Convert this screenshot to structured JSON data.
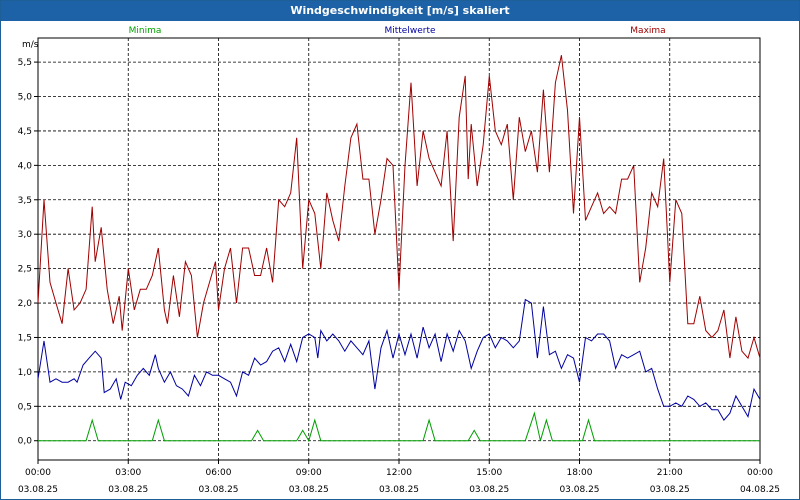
{
  "window": {
    "title": "Windgeschwindigkeit [m/s] skaliert"
  },
  "chart_data": {
    "type": "line",
    "title": "Windgeschwindigkeit [m/s] skaliert",
    "ylabel": "m/s",
    "ylim": [
      -0.28,
      5.85
    ],
    "yticks": [
      "0,0",
      "0,5",
      "1,0",
      "1,5",
      "2,0",
      "2,5",
      "3,0",
      "3,5",
      "4,0",
      "4,5",
      "5,0",
      "5,5"
    ],
    "xticks": [
      {
        "time": "00:00",
        "date": "03.08.25"
      },
      {
        "time": "03:00",
        "date": "03.08.25"
      },
      {
        "time": "06:00",
        "date": "03.08.25"
      },
      {
        "time": "09:00",
        "date": "03.08.25"
      },
      {
        "time": "12:00",
        "date": "03.08.25"
      },
      {
        "time": "15:00",
        "date": "03.08.25"
      },
      {
        "time": "18:00",
        "date": "03.08.25"
      },
      {
        "time": "21:00",
        "date": "03.08.25"
      },
      {
        "time": "00:00",
        "date": "04.08.25"
      }
    ],
    "grid": true,
    "series": [
      {
        "name": "Minima",
        "color": "#00a000",
        "points": [
          [
            0,
            0
          ],
          [
            1.6,
            0
          ],
          [
            1.8,
            0.3
          ],
          [
            2.0,
            0
          ],
          [
            3.8,
            0
          ],
          [
            4.0,
            0.3
          ],
          [
            4.2,
            0
          ],
          [
            7.1,
            0
          ],
          [
            7.3,
            0.15
          ],
          [
            7.5,
            0
          ],
          [
            8.6,
            0
          ],
          [
            8.8,
            0.15
          ],
          [
            9.0,
            0
          ],
          [
            9.2,
            0.3
          ],
          [
            9.4,
            0
          ],
          [
            12.8,
            0
          ],
          [
            13.0,
            0.3
          ],
          [
            13.2,
            0
          ],
          [
            14.3,
            0
          ],
          [
            14.5,
            0.15
          ],
          [
            14.7,
            0
          ],
          [
            16.2,
            0
          ],
          [
            16.5,
            0.4
          ],
          [
            16.7,
            0
          ],
          [
            16.9,
            0.3
          ],
          [
            17.1,
            0
          ],
          [
            18.1,
            0
          ],
          [
            18.3,
            0.3
          ],
          [
            18.5,
            0
          ],
          [
            24,
            0
          ]
        ]
      },
      {
        "name": "Mittelwerte",
        "color": "#0000a0",
        "points": [
          [
            0,
            0.9
          ],
          [
            0.2,
            1.45
          ],
          [
            0.4,
            0.85
          ],
          [
            0.6,
            0.9
          ],
          [
            0.8,
            0.85
          ],
          [
            1.0,
            0.85
          ],
          [
            1.2,
            0.9
          ],
          [
            1.3,
            0.85
          ],
          [
            1.5,
            1.1
          ],
          [
            1.7,
            1.2
          ],
          [
            1.9,
            1.3
          ],
          [
            2.1,
            1.2
          ],
          [
            2.2,
            0.7
          ],
          [
            2.4,
            0.75
          ],
          [
            2.6,
            0.9
          ],
          [
            2.75,
            0.6
          ],
          [
            2.9,
            0.85
          ],
          [
            3.1,
            0.8
          ],
          [
            3.3,
            0.95
          ],
          [
            3.5,
            1.05
          ],
          [
            3.7,
            0.95
          ],
          [
            3.9,
            1.25
          ],
          [
            4.0,
            1.05
          ],
          [
            4.2,
            0.85
          ],
          [
            4.4,
            1.0
          ],
          [
            4.6,
            0.8
          ],
          [
            4.8,
            0.75
          ],
          [
            5.0,
            0.65
          ],
          [
            5.2,
            0.95
          ],
          [
            5.4,
            0.8
          ],
          [
            5.6,
            1.0
          ],
          [
            5.8,
            0.95
          ],
          [
            6.0,
            0.95
          ],
          [
            6.2,
            0.9
          ],
          [
            6.4,
            0.85
          ],
          [
            6.6,
            0.65
          ],
          [
            6.8,
            1.0
          ],
          [
            7.0,
            0.95
          ],
          [
            7.2,
            1.2
          ],
          [
            7.4,
            1.1
          ],
          [
            7.6,
            1.15
          ],
          [
            7.8,
            1.3
          ],
          [
            8.0,
            1.35
          ],
          [
            8.2,
            1.15
          ],
          [
            8.4,
            1.4
          ],
          [
            8.6,
            1.15
          ],
          [
            8.8,
            1.5
          ],
          [
            9.0,
            1.55
          ],
          [
            9.2,
            1.5
          ],
          [
            9.3,
            1.2
          ],
          [
            9.4,
            1.6
          ],
          [
            9.6,
            1.45
          ],
          [
            9.8,
            1.55
          ],
          [
            10.0,
            1.45
          ],
          [
            10.2,
            1.3
          ],
          [
            10.4,
            1.45
          ],
          [
            10.6,
            1.35
          ],
          [
            10.8,
            1.25
          ],
          [
            11.0,
            1.45
          ],
          [
            11.2,
            0.75
          ],
          [
            11.4,
            1.35
          ],
          [
            11.6,
            1.6
          ],
          [
            11.8,
            1.2
          ],
          [
            12.0,
            1.55
          ],
          [
            12.2,
            1.25
          ],
          [
            12.4,
            1.55
          ],
          [
            12.6,
            1.2
          ],
          [
            12.8,
            1.65
          ],
          [
            13.0,
            1.35
          ],
          [
            13.2,
            1.55
          ],
          [
            13.4,
            1.15
          ],
          [
            13.6,
            1.55
          ],
          [
            13.8,
            1.3
          ],
          [
            14.0,
            1.6
          ],
          [
            14.2,
            1.45
          ],
          [
            14.4,
            1.05
          ],
          [
            14.6,
            1.3
          ],
          [
            14.8,
            1.5
          ],
          [
            15.0,
            1.55
          ],
          [
            15.2,
            1.35
          ],
          [
            15.4,
            1.5
          ],
          [
            15.6,
            1.45
          ],
          [
            15.8,
            1.35
          ],
          [
            16.0,
            1.45
          ],
          [
            16.2,
            2.05
          ],
          [
            16.4,
            2.0
          ],
          [
            16.6,
            1.2
          ],
          [
            16.8,
            1.95
          ],
          [
            17.0,
            1.25
          ],
          [
            17.2,
            1.3
          ],
          [
            17.4,
            1.05
          ],
          [
            17.6,
            1.25
          ],
          [
            17.8,
            1.2
          ],
          [
            18.0,
            0.85
          ],
          [
            18.2,
            1.5
          ],
          [
            18.4,
            1.45
          ],
          [
            18.6,
            1.55
          ],
          [
            18.8,
            1.55
          ],
          [
            19.0,
            1.45
          ],
          [
            19.2,
            1.05
          ],
          [
            19.4,
            1.25
          ],
          [
            19.6,
            1.2
          ],
          [
            19.8,
            1.25
          ],
          [
            20.0,
            1.3
          ],
          [
            20.2,
            1.0
          ],
          [
            20.4,
            1.05
          ],
          [
            20.6,
            0.75
          ],
          [
            20.8,
            0.5
          ],
          [
            21.0,
            0.5
          ],
          [
            21.2,
            0.55
          ],
          [
            21.4,
            0.5
          ],
          [
            21.6,
            0.65
          ],
          [
            21.8,
            0.6
          ],
          [
            22.0,
            0.5
          ],
          [
            22.2,
            0.55
          ],
          [
            22.4,
            0.45
          ],
          [
            22.6,
            0.45
          ],
          [
            22.8,
            0.3
          ],
          [
            23.0,
            0.4
          ],
          [
            23.2,
            0.65
          ],
          [
            23.4,
            0.5
          ],
          [
            23.6,
            0.35
          ],
          [
            23.8,
            0.75
          ],
          [
            24.0,
            0.6
          ]
        ]
      },
      {
        "name": "Maxima",
        "color": "#a00000",
        "points": [
          [
            0,
            2.0
          ],
          [
            0.2,
            3.5
          ],
          [
            0.4,
            2.3
          ],
          [
            0.6,
            2.0
          ],
          [
            0.8,
            1.7
          ],
          [
            1.0,
            2.5
          ],
          [
            1.2,
            1.9
          ],
          [
            1.4,
            2.0
          ],
          [
            1.6,
            2.2
          ],
          [
            1.8,
            3.4
          ],
          [
            1.9,
            2.6
          ],
          [
            2.1,
            3.1
          ],
          [
            2.3,
            2.2
          ],
          [
            2.5,
            1.7
          ],
          [
            2.7,
            2.1
          ],
          [
            2.8,
            1.6
          ],
          [
            3.0,
            2.5
          ],
          [
            3.2,
            1.9
          ],
          [
            3.4,
            2.2
          ],
          [
            3.6,
            2.2
          ],
          [
            3.8,
            2.4
          ],
          [
            4.0,
            2.8
          ],
          [
            4.2,
            1.9
          ],
          [
            4.3,
            1.7
          ],
          [
            4.5,
            2.4
          ],
          [
            4.7,
            1.8
          ],
          [
            4.9,
            2.6
          ],
          [
            5.1,
            2.4
          ],
          [
            5.3,
            1.5
          ],
          [
            5.5,
            2.0
          ],
          [
            5.7,
            2.3
          ],
          [
            5.9,
            2.6
          ],
          [
            6.0,
            1.9
          ],
          [
            6.2,
            2.5
          ],
          [
            6.4,
            2.8
          ],
          [
            6.6,
            2.0
          ],
          [
            6.8,
            2.8
          ],
          [
            7.0,
            2.8
          ],
          [
            7.2,
            2.4
          ],
          [
            7.4,
            2.4
          ],
          [
            7.6,
            2.8
          ],
          [
            7.8,
            2.3
          ],
          [
            8.0,
            3.5
          ],
          [
            8.2,
            3.4
          ],
          [
            8.4,
            3.6
          ],
          [
            8.6,
            4.4
          ],
          [
            8.8,
            2.5
          ],
          [
            9.0,
            3.5
          ],
          [
            9.2,
            3.3
          ],
          [
            9.4,
            2.5
          ],
          [
            9.6,
            3.6
          ],
          [
            9.8,
            3.2
          ],
          [
            10.0,
            2.9
          ],
          [
            10.2,
            3.7
          ],
          [
            10.4,
            4.4
          ],
          [
            10.6,
            4.6
          ],
          [
            10.8,
            3.8
          ],
          [
            11.0,
            3.8
          ],
          [
            11.2,
            3.0
          ],
          [
            11.4,
            3.5
          ],
          [
            11.6,
            4.1
          ],
          [
            11.8,
            4.0
          ],
          [
            12.0,
            2.2
          ],
          [
            12.2,
            4.0
          ],
          [
            12.4,
            5.2
          ],
          [
            12.6,
            3.7
          ],
          [
            12.8,
            4.5
          ],
          [
            13.0,
            4.1
          ],
          [
            13.2,
            3.9
          ],
          [
            13.4,
            3.7
          ],
          [
            13.6,
            4.5
          ],
          [
            13.8,
            2.9
          ],
          [
            14.0,
            4.7
          ],
          [
            14.2,
            5.3
          ],
          [
            14.3,
            3.8
          ],
          [
            14.4,
            4.6
          ],
          [
            14.6,
            3.7
          ],
          [
            14.8,
            4.3
          ],
          [
            15.0,
            5.3
          ],
          [
            15.2,
            4.5
          ],
          [
            15.4,
            4.3
          ],
          [
            15.6,
            4.6
          ],
          [
            15.8,
            3.5
          ],
          [
            16.0,
            4.7
          ],
          [
            16.2,
            4.2
          ],
          [
            16.4,
            4.5
          ],
          [
            16.6,
            3.9
          ],
          [
            16.8,
            5.1
          ],
          [
            17.0,
            3.9
          ],
          [
            17.2,
            5.2
          ],
          [
            17.4,
            5.6
          ],
          [
            17.6,
            4.8
          ],
          [
            17.8,
            3.3
          ],
          [
            18.0,
            4.7
          ],
          [
            18.2,
            3.2
          ],
          [
            18.4,
            3.4
          ],
          [
            18.6,
            3.6
          ],
          [
            18.8,
            3.3
          ],
          [
            19.0,
            3.4
          ],
          [
            19.2,
            3.3
          ],
          [
            19.4,
            3.8
          ],
          [
            19.6,
            3.8
          ],
          [
            19.8,
            4.0
          ],
          [
            20.0,
            2.3
          ],
          [
            20.2,
            2.8
          ],
          [
            20.4,
            3.6
          ],
          [
            20.6,
            3.4
          ],
          [
            20.8,
            4.1
          ],
          [
            21.0,
            2.3
          ],
          [
            21.2,
            3.5
          ],
          [
            21.4,
            3.3
          ],
          [
            21.6,
            1.7
          ],
          [
            21.8,
            1.7
          ],
          [
            22.0,
            2.1
          ],
          [
            22.2,
            1.6
          ],
          [
            22.4,
            1.5
          ],
          [
            22.6,
            1.6
          ],
          [
            22.8,
            1.9
          ],
          [
            23.0,
            1.2
          ],
          [
            23.2,
            1.8
          ],
          [
            23.4,
            1.3
          ],
          [
            23.6,
            1.2
          ],
          [
            23.8,
            1.5
          ],
          [
            24.0,
            1.2
          ]
        ]
      }
    ]
  }
}
